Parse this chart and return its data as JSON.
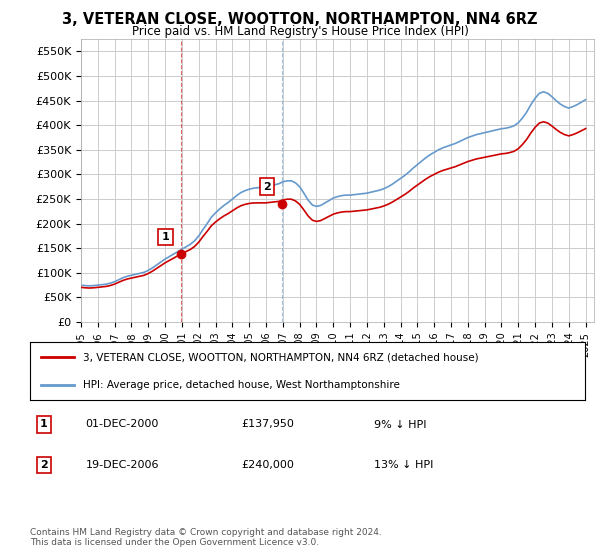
{
  "title": "3, VETERAN CLOSE, WOOTTON, NORTHAMPTON, NN4 6RZ",
  "subtitle": "Price paid vs. HM Land Registry's House Price Index (HPI)",
  "ylabel_ticks": [
    "£0",
    "£50K",
    "£100K",
    "£150K",
    "£200K",
    "£250K",
    "£300K",
    "£350K",
    "£400K",
    "£450K",
    "£500K",
    "£550K"
  ],
  "ytick_values": [
    0,
    50000,
    100000,
    150000,
    200000,
    250000,
    300000,
    350000,
    400000,
    450000,
    500000,
    550000
  ],
  "ylim": [
    0,
    575000
  ],
  "xlim_start": 1995.0,
  "xlim_end": 2025.5,
  "sale1_x": 2000.92,
  "sale1_y": 137950,
  "sale1_label": "1",
  "sale1_date": "01-DEC-2000",
  "sale1_price": "£137,950",
  "sale1_hpi": "9% ↓ HPI",
  "sale2_x": 2006.96,
  "sale2_y": 240000,
  "sale2_label": "2",
  "sale2_date": "19-DEC-2006",
  "sale2_price": "£240,000",
  "sale2_hpi": "13% ↓ HPI",
  "line_property_color": "#cc0000",
  "line_hpi_color": "#6699cc",
  "background_color": "#ffffff",
  "plot_bg_color": "#ffffff",
  "grid_color": "#cccccc",
  "legend_label_property": "3, VETERAN CLOSE, WOOTTON, NORTHAMPTON, NN4 6RZ (detached house)",
  "legend_label_hpi": "HPI: Average price, detached house, West Northamptonshire",
  "footer": "Contains HM Land Registry data © Crown copyright and database right 2024.\nThis data is licensed under the Open Government Licence v3.0."
}
